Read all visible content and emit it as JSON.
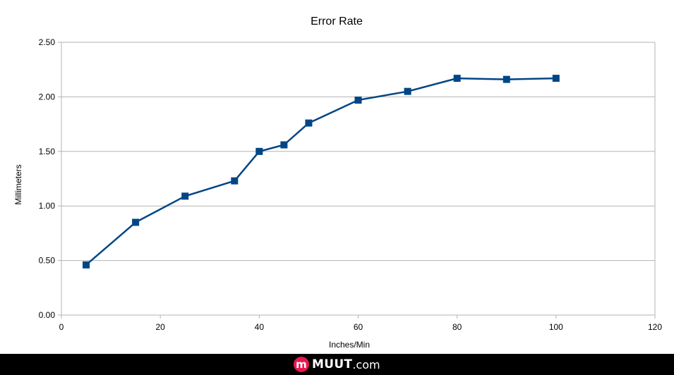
{
  "chart_data": {
    "type": "line",
    "title": "Error Rate",
    "xlabel": "Inches/Min",
    "ylabel": "Millimeters",
    "xlim": [
      0,
      120
    ],
    "ylim": [
      0,
      2.5
    ],
    "xticks": [
      "0",
      "20",
      "40",
      "60",
      "80",
      "100",
      "120"
    ],
    "yticks": [
      "0.00",
      "0.50",
      "1.00",
      "1.50",
      "2.00",
      "2.50"
    ],
    "grid": "horizontal",
    "legend": "none",
    "series": [
      {
        "color": "#004586",
        "marker": "square",
        "x": [
          5,
          15,
          25,
          35,
          40,
          45,
          50,
          60,
          70,
          80,
          90,
          100
        ],
        "y": [
          0.46,
          0.85,
          1.09,
          1.23,
          1.5,
          1.56,
          1.76,
          1.97,
          2.05,
          2.17,
          2.16,
          2.17
        ]
      }
    ]
  },
  "footer": {
    "brand_icon": "m",
    "brand_name": "MUUT",
    "brand_tld": ".com"
  }
}
